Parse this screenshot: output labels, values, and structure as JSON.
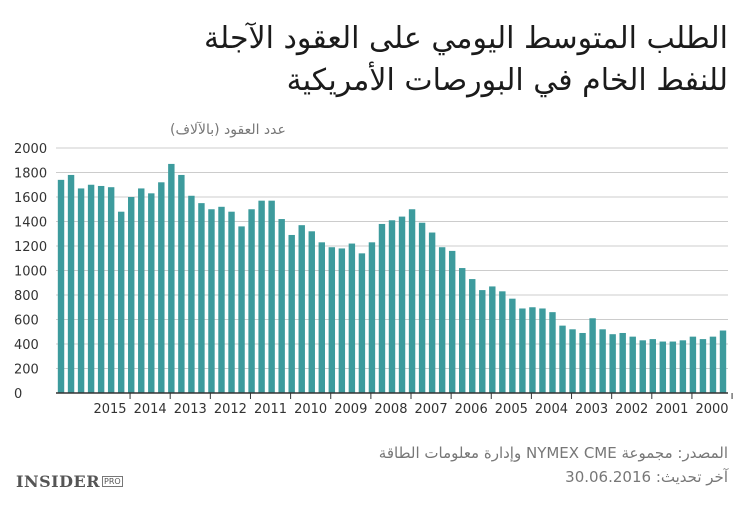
{
  "title": {
    "line1": "الطلب المتوسط اليومي على العقود الآجلة",
    "line2": "للنفط الخام في البورصات الأمريكية"
  },
  "source": {
    "line1": "المصدر: مجموعة NYMEX CME وإدارة معلومات الطاقة",
    "line2": "آخر تحديث: 30.06.2016"
  },
  "logo": {
    "name": "INSIDER",
    "badge": "PRO"
  },
  "colors": {
    "bar": "#3d9b9d",
    "axis": "#333333",
    "grid": "#cccccc",
    "text": "#333333"
  },
  "chart_data": {
    "type": "bar",
    "ylabel": "عدد العقود (بالآلاف)",
    "ylim": [
      0,
      2000
    ],
    "yticks": [
      0,
      200,
      400,
      600,
      800,
      1000,
      1200,
      1400,
      1600,
      1800,
      2000
    ],
    "xticks": [
      "2000",
      "2001",
      "2002",
      "2003",
      "2004",
      "2005",
      "2006",
      "2007",
      "2008",
      "2009",
      "2010",
      "2011",
      "2012",
      "2013",
      "2014",
      "2015"
    ],
    "order": "x axis runs from newest (left) to oldest (right); values listed left to right",
    "values": [
      1740,
      1780,
      1670,
      1700,
      1690,
      1680,
      1480,
      1600,
      1670,
      1630,
      1720,
      1870,
      1780,
      1610,
      1550,
      1500,
      1520,
      1480,
      1360,
      1500,
      1570,
      1570,
      1420,
      1290,
      1370,
      1320,
      1230,
      1190,
      1180,
      1220,
      1140,
      1230,
      1380,
      1410,
      1440,
      1500,
      1390,
      1310,
      1190,
      1160,
      1020,
      930,
      840,
      870,
      830,
      770,
      690,
      700,
      690,
      660,
      550,
      520,
      490,
      610,
      520,
      480,
      490,
      460,
      430,
      440,
      420,
      420,
      430,
      460,
      440,
      460,
      510
    ]
  }
}
